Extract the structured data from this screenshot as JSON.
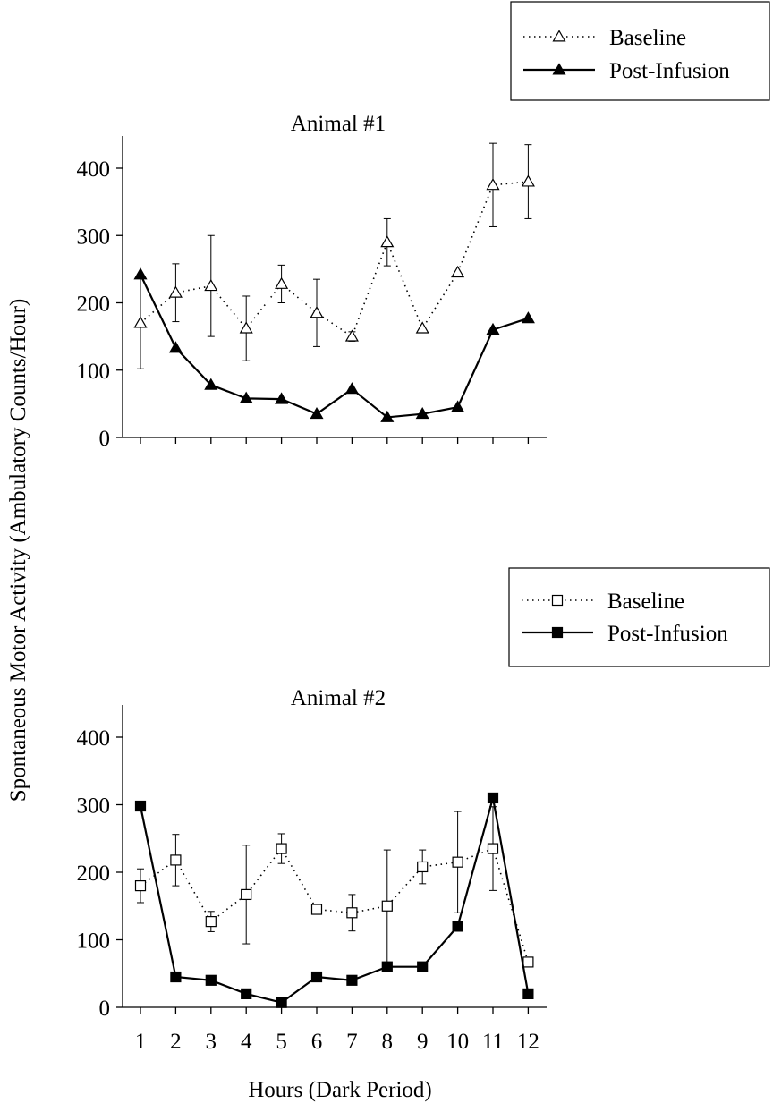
{
  "figure": {
    "ylabel": "Spontaneous Motor Activity (Ambulatory Counts/Hour)",
    "xlabel": "Hours (Dark Period)"
  },
  "chart_data": [
    {
      "type": "line",
      "title": "Animal #1",
      "xlabel": "",
      "ylabel": "",
      "ylim": [
        0,
        400
      ],
      "yticks": [
        0,
        100,
        200,
        300,
        400
      ],
      "categories": [
        "1",
        "2",
        "3",
        "4",
        "5",
        "6",
        "7",
        "8",
        "9",
        "10",
        "11",
        "12"
      ],
      "show_x_tick_labels": false,
      "legend": {
        "position": "top-right",
        "entries": [
          "Baseline",
          "Post-Infusion"
        ]
      },
      "series": [
        {
          "name": "Baseline",
          "marker": "open-triangle",
          "line": "dotted",
          "values": [
            170,
            215,
            225,
            162,
            228,
            185,
            150,
            290,
            162,
            245,
            375,
            380
          ],
          "error": [
            68,
            43,
            75,
            48,
            28,
            50,
            7,
            35,
            0,
            0,
            62,
            55
          ]
        },
        {
          "name": "Post-Infusion",
          "marker": "filled-triangle",
          "line": "solid",
          "values": [
            242,
            133,
            78,
            58,
            57,
            35,
            72,
            30,
            35,
            45,
            160,
            177
          ]
        }
      ]
    },
    {
      "type": "line",
      "title": "Animal #2",
      "xlabel": "",
      "ylabel": "",
      "ylim": [
        0,
        400
      ],
      "yticks": [
        0,
        100,
        200,
        300,
        400
      ],
      "categories": [
        "1",
        "2",
        "3",
        "4",
        "5",
        "6",
        "7",
        "8",
        "9",
        "10",
        "11",
        "12"
      ],
      "show_x_tick_labels": true,
      "legend": {
        "position": "top-right",
        "entries": [
          "Baseline",
          "Post-Infusion"
        ]
      },
      "series": [
        {
          "name": "Baseline",
          "marker": "open-square",
          "line": "dotted",
          "values": [
            180,
            218,
            127,
            167,
            235,
            145,
            140,
            150,
            208,
            215,
            235,
            67
          ],
          "error": [
            25,
            38,
            15,
            73,
            22,
            0,
            27,
            83,
            25,
            75,
            62,
            0
          ]
        },
        {
          "name": "Post-Infusion",
          "marker": "filled-square",
          "line": "solid",
          "values": [
            298,
            45,
            40,
            20,
            7,
            45,
            40,
            60,
            60,
            120,
            310,
            20
          ]
        }
      ]
    }
  ]
}
